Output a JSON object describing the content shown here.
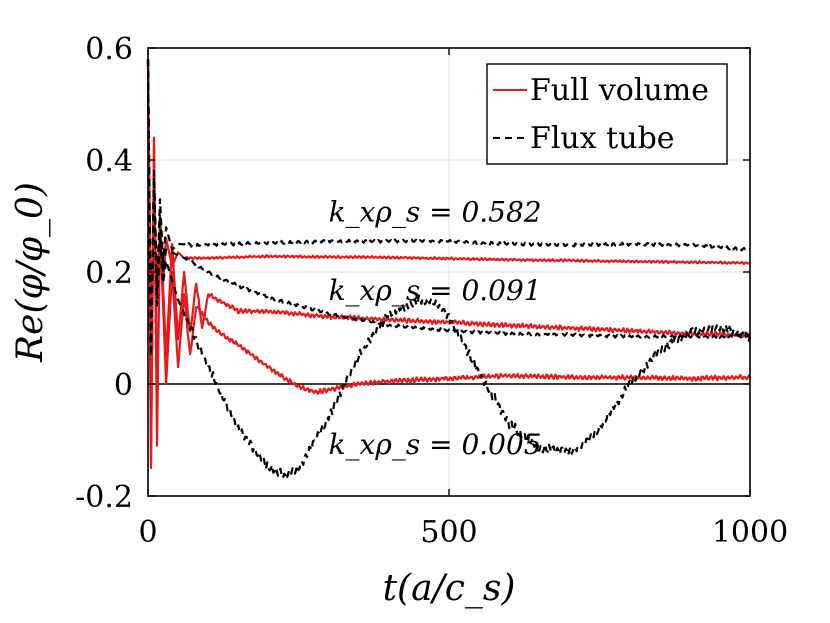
{
  "chart_data": {
    "type": "line",
    "xlabel": "t(a/c_s)",
    "ylabel": "Re(φ/φ_0)",
    "xlim": [
      0,
      1000
    ],
    "ylim": [
      -0.2,
      0.6
    ],
    "x_ticks": [
      0,
      500,
      1000
    ],
    "x_tick_labels": [
      "0",
      "500",
      "1000"
    ],
    "y_ticks": [
      -0.2,
      0,
      0.2,
      0.4,
      0.6
    ],
    "y_tick_labels": [
      "-0.2",
      "0",
      "0.2",
      "0.4",
      "0.6"
    ],
    "grid": true,
    "legend": {
      "position": "top-right",
      "entries": [
        {
          "label": "Full volume",
          "color": "#e41a1c",
          "style": "solid"
        },
        {
          "label": "Flux tube",
          "color": "#000000",
          "style": "dashed"
        }
      ]
    },
    "annotations": [
      {
        "text": "k_xρ_s = 0.582",
        "x": 300,
        "y": 0.29
      },
      {
        "text": "k_xρ_s = 0.091",
        "x": 300,
        "y": 0.15
      },
      {
        "text": "k_xρ_s = 0.005",
        "x": 300,
        "y": -0.125
      }
    ],
    "series": [
      {
        "name": "Full volume, k_xρ_s = 0.582",
        "style": "solid",
        "color": "#e41a1c",
        "wiggle": 0.0015,
        "x": [
          0,
          5,
          10,
          15,
          20,
          25,
          30,
          40,
          50,
          60,
          100,
          200,
          400,
          600,
          800,
          1000
        ],
        "y": [
          0.58,
          0.1,
          0.3,
          0.16,
          0.28,
          0.18,
          0.26,
          0.21,
          0.235,
          0.225,
          0.225,
          0.228,
          0.226,
          0.222,
          0.219,
          0.216
        ]
      },
      {
        "name": "Full volume, k_xρ_s = 0.091",
        "style": "solid",
        "color": "#e41a1c",
        "wiggle": 0.003,
        "x": [
          0,
          5,
          10,
          15,
          20,
          30,
          40,
          50,
          60,
          70,
          80,
          90,
          100,
          150,
          200,
          250,
          300,
          400,
          500,
          600,
          700,
          800,
          900,
          1000
        ],
        "y": [
          0.58,
          -0.15,
          0.44,
          -0.05,
          0.3,
          0.05,
          0.25,
          0.08,
          0.2,
          0.09,
          0.18,
          0.1,
          0.16,
          0.13,
          0.13,
          0.125,
          0.12,
          0.115,
          0.11,
          0.105,
          0.1,
          0.095,
          0.09,
          0.088
        ]
      },
      {
        "name": "Full volume, k_xρ_s = 0.005",
        "style": "solid",
        "color": "#e41a1c",
        "wiggle": 0.003,
        "x": [
          0,
          5,
          10,
          15,
          20,
          30,
          40,
          50,
          60,
          70,
          80,
          100,
          120,
          150,
          200,
          250,
          280,
          300,
          350,
          400,
          500,
          600,
          700,
          800,
          900,
          1000
        ],
        "y": [
          0.58,
          -0.14,
          0.42,
          -0.11,
          0.28,
          0.0,
          0.2,
          0.03,
          0.16,
          0.05,
          0.14,
          0.11,
          0.09,
          0.07,
          0.03,
          -0.005,
          -0.015,
          -0.01,
          0.0,
          0.005,
          0.01,
          0.015,
          0.012,
          0.012,
          0.01,
          0.012
        ]
      },
      {
        "name": "Flux tube, k_xρ_s = 0.582",
        "style": "dashed",
        "color": "#000000",
        "wiggle": 0.002,
        "x": [
          0,
          5,
          10,
          15,
          20,
          25,
          30,
          40,
          50,
          80,
          200,
          300,
          400,
          500,
          600,
          700,
          800,
          900,
          1000
        ],
        "y": [
          0.58,
          0.05,
          0.38,
          0.17,
          0.33,
          0.22,
          0.28,
          0.24,
          0.25,
          0.248,
          0.252,
          0.255,
          0.255,
          0.255,
          0.25,
          0.248,
          0.25,
          0.248,
          0.24
        ]
      },
      {
        "name": "Flux tube, k_xρ_s = 0.091",
        "style": "dashed",
        "color": "#000000",
        "wiggle": 0.002,
        "x": [
          0,
          5,
          10,
          15,
          20,
          25,
          30,
          40,
          50,
          70,
          100,
          150,
          200,
          300,
          400,
          500,
          600,
          700,
          800,
          900,
          1000
        ],
        "y": [
          0.58,
          0.05,
          0.38,
          0.16,
          0.3,
          0.2,
          0.24,
          0.235,
          0.23,
          0.22,
          0.2,
          0.175,
          0.155,
          0.125,
          0.105,
          0.095,
          0.09,
          0.088,
          0.085,
          0.085,
          0.085
        ]
      },
      {
        "name": "Flux tube, k_xρ_s = 0.005",
        "style": "dashed",
        "color": "#000000",
        "wiggle": 0.006,
        "x": [
          0,
          5,
          10,
          15,
          20,
          25,
          30,
          50,
          100,
          150,
          200,
          230,
          250,
          300,
          350,
          400,
          450,
          480,
          500,
          550,
          600,
          650,
          700,
          720,
          750,
          800,
          850,
          900,
          950,
          1000
        ],
        "y": [
          0.58,
          0.05,
          0.36,
          0.14,
          0.26,
          0.18,
          0.22,
          0.15,
          0.03,
          -0.08,
          -0.15,
          -0.165,
          -0.15,
          -0.06,
          0.05,
          0.125,
          0.15,
          0.145,
          0.12,
          0.02,
          -0.07,
          -0.115,
          -0.12,
          -0.11,
          -0.08,
          0.0,
          0.06,
          0.095,
          0.1,
          0.085
        ]
      }
    ]
  }
}
